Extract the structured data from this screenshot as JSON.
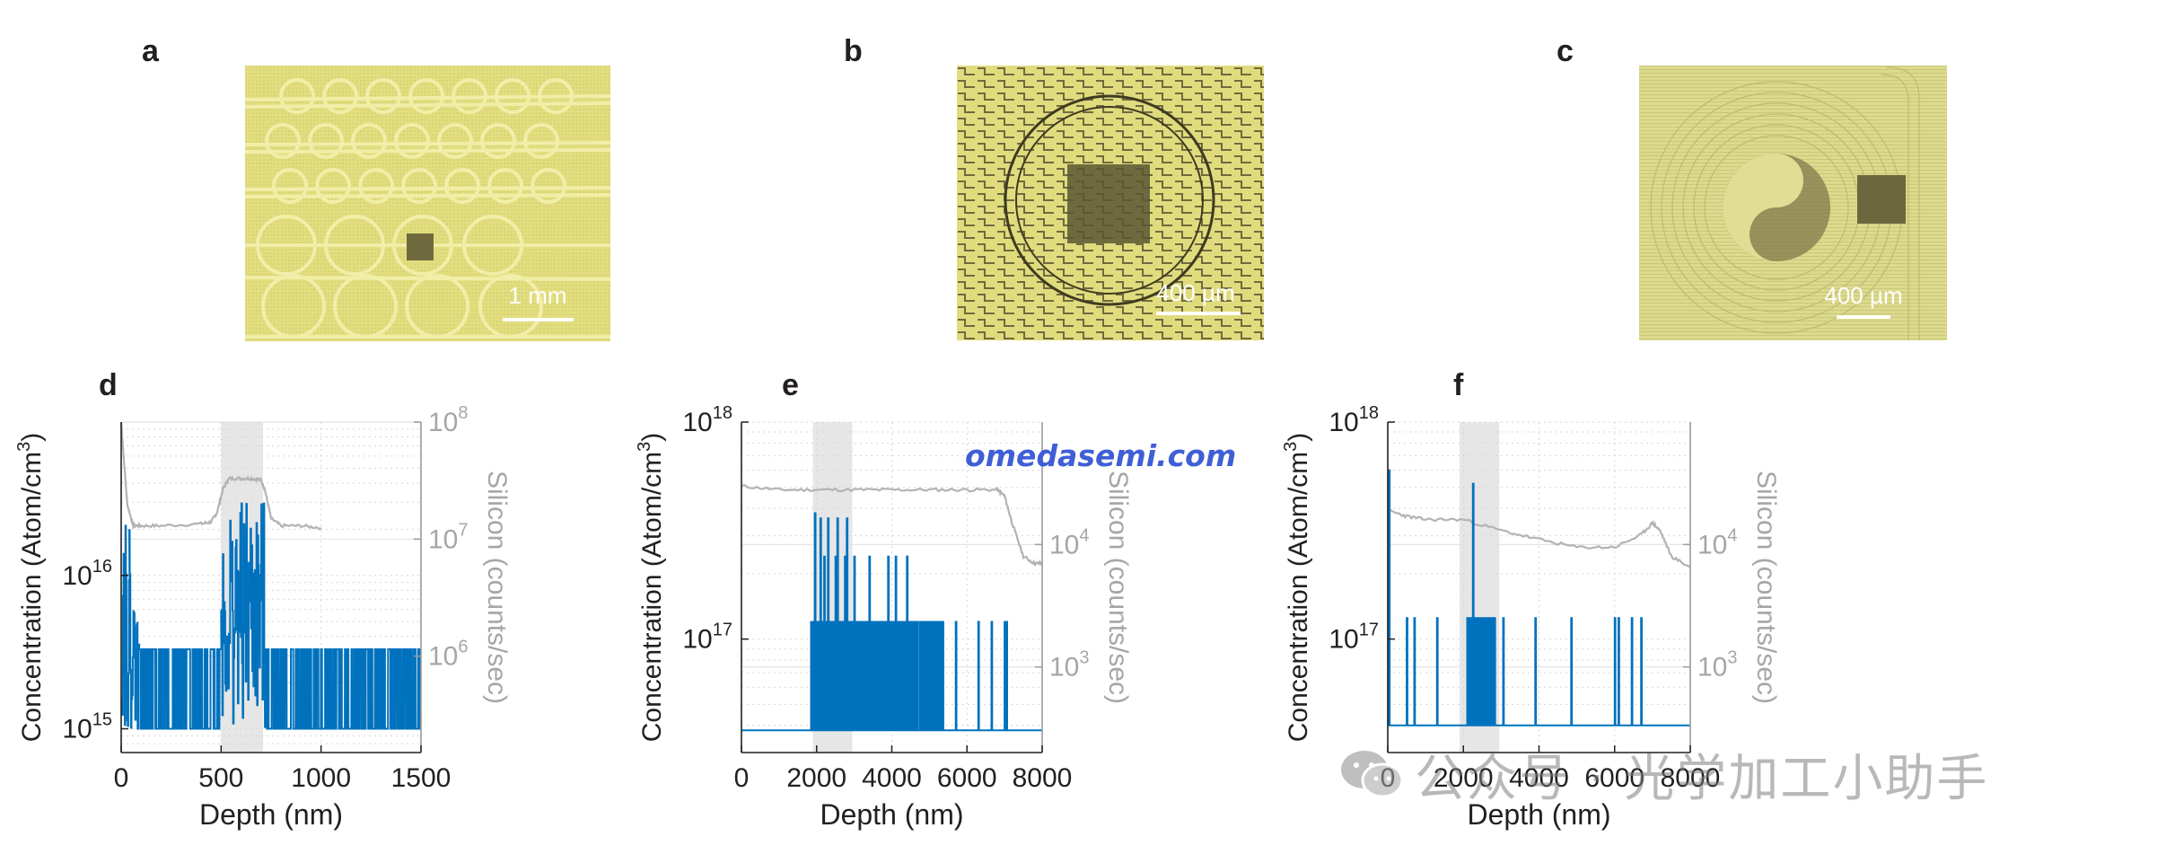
{
  "panels": {
    "a": {
      "letter": "a",
      "scalebar": "1 mm"
    },
    "b": {
      "letter": "b",
      "scalebar": "400 µm"
    },
    "c": {
      "letter": "c",
      "scalebar": "400 µm"
    },
    "d": {
      "letter": "d"
    },
    "e": {
      "letter": "e"
    },
    "f": {
      "letter": "f"
    }
  },
  "overlay_url": "omedasemi.com",
  "watermark": {
    "text": "公众号 · 光学加工小助手",
    "icon": "wechat-icon"
  },
  "colors": {
    "concentration": "#0072bd",
    "silicon": "#b3b3b3",
    "highlight": "#e6e6e6",
    "micro_yellow": "#e2df83"
  },
  "chart_data": [
    {
      "panel": "d",
      "type": "line",
      "xlabel": "Depth (nm)",
      "ylabel": "Concentration (Atom/cm3)",
      "y2label": "Silicon (counts/sec)",
      "xlim": [
        0,
        1500
      ],
      "xticks": [
        0,
        500,
        1000,
        1500
      ],
      "ylim": [
        700000000000000,
        100000000000000000
      ],
      "yscale": "log",
      "yticks": [
        {
          "value": 1000000000000000.0,
          "base": "10",
          "exp": "15"
        },
        {
          "value": 1e+16,
          "base": "10",
          "exp": "16"
        }
      ],
      "y2lim": [
        150000,
        100000000
      ],
      "y2ticks": [
        {
          "value": 1000000.0,
          "base": "10",
          "exp": "6"
        },
        {
          "value": 10000000.0,
          "base": "10",
          "exp": "7"
        },
        {
          "value": 100000000.0,
          "base": "10",
          "exp": "8"
        }
      ],
      "highlight": [
        500,
        710
      ],
      "grid": true,
      "series": [
        {
          "axis": "left",
          "color": "#0072bd",
          "style": "noise",
          "baseline": 1000000000000000.0,
          "peak": 3300000000000000.0,
          "segments": [
            {
              "x": [
                0,
                40
              ],
              "high": [
                1e+17,
                2e+16
              ]
            },
            {
              "x": [
                40,
                90
              ],
              "high": [
                2e+16,
                3300000000000000.0
              ]
            },
            {
              "x": [
                90,
                500
              ],
              "high": [
                3300000000000000.0,
                3300000000000000.0
              ]
            },
            {
              "x": [
                500,
                720
              ],
              "high": [
                3e+16,
                3e+16
              ]
            },
            {
              "x": [
                720,
                1500
              ],
              "high": [
                3300000000000000.0,
                3300000000000000.0
              ]
            }
          ]
        },
        {
          "axis": "right",
          "color": "#b3b3b3",
          "style": "line",
          "x": [
            0,
            30,
            60,
            100,
            200,
            400,
            450,
            480,
            510,
            540,
            600,
            650,
            700,
            720,
            750,
            800,
            900,
            1000
          ],
          "values": [
            100000000.0,
            20000000.0,
            13000000.0,
            13000000.0,
            13000000.0,
            13500000.0,
            14000000.0,
            17000000.0,
            27000000.0,
            33000000.0,
            33000000.0,
            33000000.0,
            32000000.0,
            26000000.0,
            15000000.0,
            13000000.0,
            13000000.0,
            12500000.0
          ]
        }
      ]
    },
    {
      "panel": "e",
      "type": "line",
      "xlabel": "Depth (nm)",
      "ylabel": "Concentration (Atom/cm3)",
      "y2label": "Silicon (counts/sec)",
      "xlim": [
        0,
        8000
      ],
      "xticks": [
        0,
        2000,
        4000,
        6000,
        8000
      ],
      "ylim": [
        30000000000000000,
        1000000000000000000
      ],
      "yscale": "log",
      "yticks": [
        {
          "value": 1e+17,
          "base": "10",
          "exp": "17"
        },
        {
          "value": 1e+18,
          "base": "10",
          "exp": "18"
        }
      ],
      "y2lim": [
        200,
        100000
      ],
      "y2ticks": [
        {
          "value": 1000.0,
          "base": "10",
          "exp": "3"
        },
        {
          "value": 10000.0,
          "base": "10",
          "exp": "4"
        }
      ],
      "highlight": [
        1900,
        2950
      ],
      "grid": true,
      "series": [
        {
          "axis": "left",
          "color": "#0072bd",
          "style": "spikes",
          "baseline": 3.8e+16,
          "dense": {
            "x": [
              1850,
              5350
            ],
            "level": 1.2e+17
          },
          "spikes": [
            [
              1950,
              3.8e+17
            ],
            [
              2100,
              3.6e+17
            ],
            [
              2300,
              3.6e+17
            ],
            [
              2550,
              3.6e+17
            ],
            [
              2800,
              3.6e+17
            ],
            [
              1950,
              2.4e+17
            ],
            [
              2200,
              2.4e+17
            ],
            [
              2500,
              2.4e+17
            ],
            [
              2750,
              2.4e+17
            ],
            [
              3000,
              2.4e+17
            ],
            [
              3400,
              2.4e+17
            ],
            [
              3900,
              2.4e+17
            ],
            [
              4100,
              2.4e+17
            ],
            [
              4400,
              2.4e+17
            ],
            [
              5700,
              1.2e+17
            ],
            [
              6300,
              1.2e+17
            ],
            [
              6650,
              1.2e+17
            ],
            [
              7000,
              1.2e+17
            ],
            [
              7050,
              1.2e+17
            ]
          ]
        },
        {
          "axis": "right",
          "color": "#b3b3b3",
          "style": "line",
          "x": [
            0,
            1000,
            2000,
            3000,
            4000,
            5000,
            6000,
            6800,
            7000,
            7200,
            7500,
            7800,
            8000
          ],
          "values": [
            30000,
            28000,
            28000,
            28000,
            28000,
            28000,
            28000,
            28000,
            25000,
            15000,
            8000,
            7000,
            7000
          ]
        }
      ]
    },
    {
      "panel": "f",
      "type": "line",
      "xlabel": "Depth (nm)",
      "ylabel": "Concentration (Atom/cm3)",
      "y2label": "Silicon (counts/sec)",
      "xlim": [
        0,
        8000
      ],
      "xticks": [
        0,
        2000,
        4000,
        6000,
        8000
      ],
      "ylim": [
        30000000000000000,
        1000000000000000000
      ],
      "yscale": "log",
      "yticks": [
        {
          "value": 1e+17,
          "base": "10",
          "exp": "17"
        },
        {
          "value": 1e+18,
          "base": "10",
          "exp": "18"
        }
      ],
      "y2lim": [
        200,
        100000
      ],
      "y2ticks": [
        {
          "value": 1000.0,
          "base": "10",
          "exp": "3"
        },
        {
          "value": 10000.0,
          "base": "10",
          "exp": "4"
        }
      ],
      "highlight": [
        1900,
        2950
      ],
      "grid": true,
      "series": [
        {
          "axis": "left",
          "color": "#0072bd",
          "style": "spikes",
          "baseline": 4e+16,
          "dense": {
            "x": [
              2100,
              2900
            ],
            "level": 1.25e+17
          },
          "spikes": [
            [
              30,
              6e+17
            ],
            [
              500,
              1.25e+17
            ],
            [
              700,
              1.25e+17
            ],
            [
              1300,
              1.25e+17
            ],
            [
              2250,
              5.2e+17
            ],
            [
              3050,
              1.25e+17
            ],
            [
              3900,
              1.25e+17
            ],
            [
              4850,
              1.25e+17
            ],
            [
              6000,
              1.25e+17
            ],
            [
              6100,
              1.25e+17
            ],
            [
              6450,
              1.25e+17
            ],
            [
              6700,
              1.25e+17
            ]
          ]
        },
        {
          "axis": "right",
          "color": "#b3b3b3",
          "style": "line",
          "x": [
            0,
            500,
            1000,
            2000,
            3000,
            4000,
            5000,
            6000,
            6700,
            7000,
            7200,
            7500,
            8000
          ],
          "values": [
            19000,
            17000,
            16000,
            16000,
            13000,
            11000,
            9500,
            9500,
            12000,
            15000,
            13000,
            8000,
            6500
          ]
        }
      ]
    }
  ]
}
